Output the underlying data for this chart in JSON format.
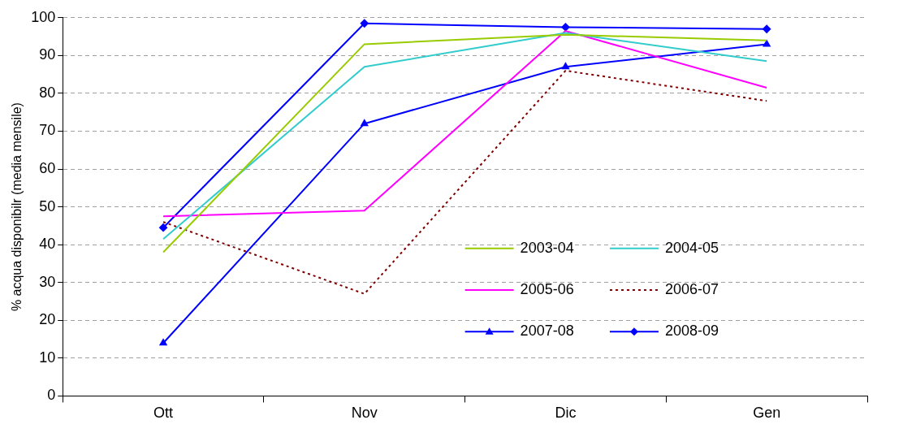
{
  "chart_data": {
    "type": "line",
    "ylabel": "% acqua disponibilr (media mensile)",
    "categories": [
      "Ott",
      "Nov",
      "Dic",
      "Gen"
    ],
    "ylim": [
      0,
      100
    ],
    "yticks": [
      0,
      10,
      20,
      30,
      40,
      50,
      60,
      70,
      80,
      90,
      100
    ],
    "grid": "y",
    "legend": "bottom right",
    "series": [
      {
        "name": "2003-04",
        "color": "#99cc00",
        "values": [
          38,
          93,
          95.5,
          94
        ]
      },
      {
        "name": "2004-05",
        "color": "#33cccc",
        "values": [
          41.5,
          87,
          96,
          88.5
        ]
      },
      {
        "name": "2005-06",
        "color": "#ff00ff",
        "values": [
          47.5,
          49,
          96.5,
          81.5
        ]
      },
      {
        "name": "2006-07",
        "color": "#800000",
        "line_style": "dotted",
        "values": [
          46,
          27,
          86,
          78
        ]
      },
      {
        "name": "2007-08",
        "color": "#0000ff",
        "marker": "triangle",
        "values": [
          14,
          72,
          87,
          93
        ]
      },
      {
        "name": "2008-09",
        "color": "#0000ff",
        "marker": "diamond",
        "values": [
          44.5,
          98.5,
          97.5,
          97
        ]
      }
    ]
  }
}
